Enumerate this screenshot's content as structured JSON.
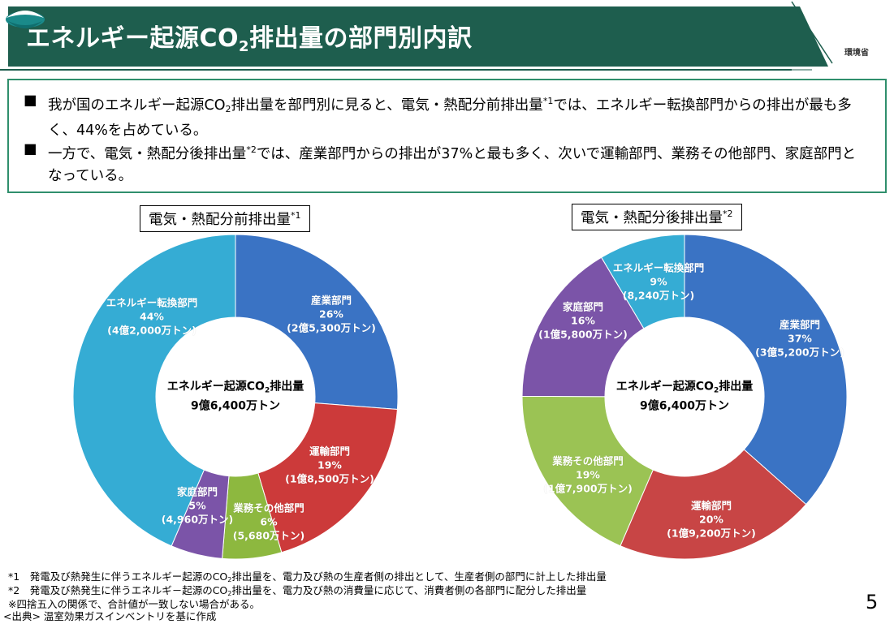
{
  "header": {
    "title_main": "エネルギー起源CO",
    "title_sub": "2",
    "title_rest": "排出量の部門別内訳",
    "logo_label": "環境省",
    "title_color": "#1e5e4e",
    "accent_color": "#2f8f6c"
  },
  "summary": {
    "bullets": [
      {
        "mark": "■",
        "p1": "我が国のエネルギー起源CO",
        "sub": "2",
        "p2": "排出量を部門別に見ると、電気・熱配分前排出量",
        "sup": "*1",
        "p3": "では、エネルギー転換部門からの排出が最も多く、44%を占めている。"
      },
      {
        "mark": "■",
        "p1": "一方で、電気・熱配分後排出量",
        "sup": "*2",
        "p2": "では、産業部門からの排出が37%と最も多く、次いで運輸部門、業務その他部門、家庭部門となっている。"
      }
    ]
  },
  "chart_data": [
    {
      "type": "pie",
      "donut": true,
      "title": "電気・熱配分前排出量",
      "title_sup": "*1",
      "center_line1": "エネルギー起源CO",
      "center_sub": "2",
      "center_line1_rest": "排出量",
      "center_line2": "9億6,400万トン",
      "slices": [
        {
          "name": "産業部門",
          "percent": 26,
          "amount": "(2億5,300万トン)",
          "value": 25300,
          "color": "#3a73c4"
        },
        {
          "name": "運輸部門",
          "percent": 19,
          "amount": "(1億8,500万トン)",
          "value": 18500,
          "color": "#cc3a3a"
        },
        {
          "name": "業務その他部門",
          "percent": 6,
          "amount": "(5,680万トン)",
          "value": 5680,
          "color": "#8db83f"
        },
        {
          "name": "家庭部門",
          "percent": 5,
          "amount": "(4,960万トン)",
          "value": 4960,
          "color": "#7b54a8"
        },
        {
          "name": "エネルギー転換部門",
          "percent": 44,
          "amount": "(4億2,000万トン)",
          "value": 42000,
          "color": "#35acd4"
        }
      ]
    },
    {
      "type": "pie",
      "donut": true,
      "title": "電気・熱配分後排出量",
      "title_sup": "*2",
      "center_line1": "エネルギー起源CO",
      "center_sub": "2",
      "center_line1_rest": "排出量",
      "center_line2": "9億6,400万トン",
      "slices": [
        {
          "name": "産業部門",
          "percent": 37,
          "amount": "(3億5,200万トン)",
          "value": 35200,
          "color": "#3a73c4"
        },
        {
          "name": "運輸部門",
          "percent": 20,
          "amount": "(1億9,200万トン)",
          "value": 19200,
          "color": "#c84545"
        },
        {
          "name": "業務その他部門",
          "percent": 19,
          "amount": "(1億7,900万トン)",
          "value": 17900,
          "color": "#9bc354"
        },
        {
          "name": "家庭部門",
          "percent": 16,
          "amount": "(1億5,800万トン)",
          "value": 15800,
          "color": "#7b54a8"
        },
        {
          "name": "エネルギー転換部門",
          "percent": 9,
          "amount": "(8,240万トン)",
          "value": 8240,
          "color": "#35acd4"
        }
      ]
    }
  ],
  "footnotes": {
    "f1_pre": "*1　発電及び熱発生に伴うエネルギー起源のCO",
    "f1_sub": "2",
    "f1_post": "排出量を、電力及び熱の生産者側の排出として、生産者側の部門に計上した排出量",
    "f2_pre": "*2　発電及び熱発生に伴うエネルギ－起源のCO",
    "f2_sub": "2",
    "f2_post": "排出量を、電力及び熱の消費量に応じて、消費者側の各部門に配分した排出量",
    "f3": "※四捨五入の関係で、合計値が一致しない場合がある。",
    "f4": "<出典> 温室効果ガスインベントリを基に作成"
  },
  "page_number": "5"
}
